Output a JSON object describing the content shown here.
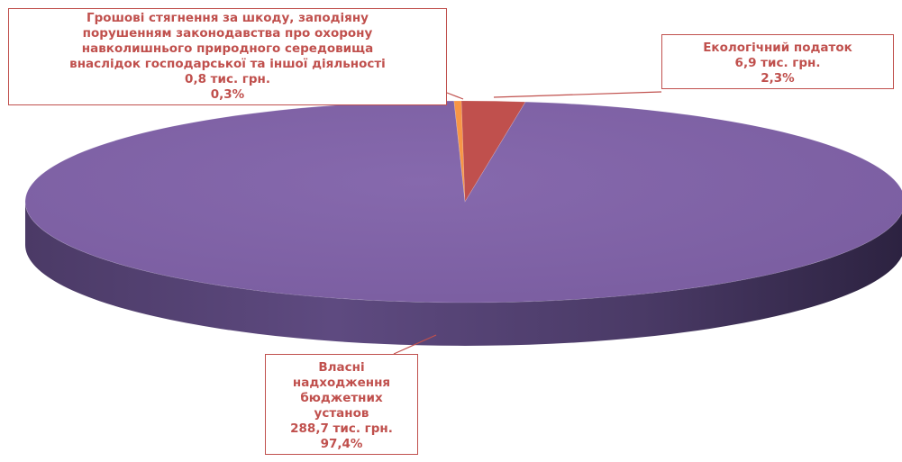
{
  "chart_data": {
    "type": "pie",
    "style": "3d",
    "slices": [
      {
        "label_lines": [
          "Грошові стягнення за шкоду, заподіяну",
          "порушенням законодавства про охорону",
          "навколишнього природного середовища",
          "внаслідок господарської та іншої діяльності"
        ],
        "value": 0.8,
        "value_text": "0,8 тис. грн.",
        "percent": 0.3,
        "percent_text": "0,3%",
        "color": "#f79646"
      },
      {
        "label_lines": [
          "Екологічний податок"
        ],
        "value": 6.9,
        "value_text": "6,9 тис. грн.",
        "percent": 2.3,
        "percent_text": "2,3%",
        "color": "#c0504d"
      },
      {
        "label_lines": [
          "Власні",
          "надходження",
          "бюджетних",
          "установ"
        ],
        "value": 288.7,
        "value_text": "288,7 тис. грн.",
        "percent": 97.4,
        "percent_text": "97,4%",
        "color": "#8064a2"
      }
    ],
    "label_color": "#c0504d"
  }
}
